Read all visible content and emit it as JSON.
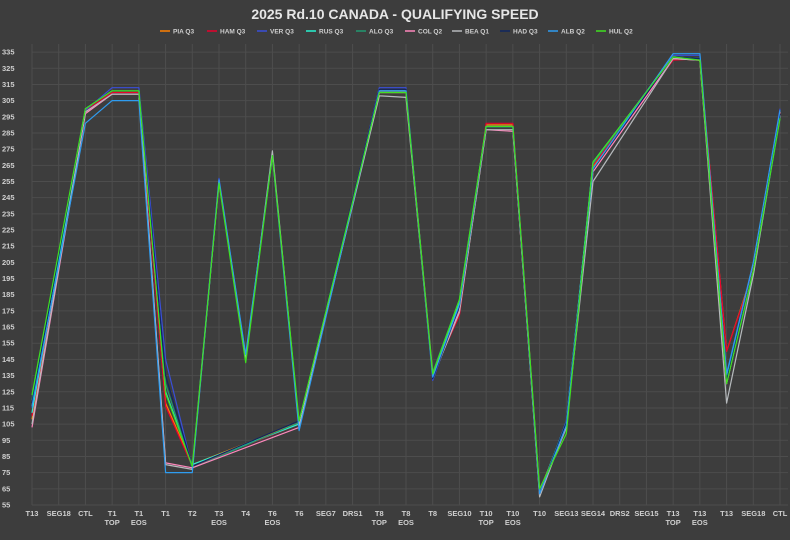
{
  "chart_data": {
    "type": "line",
    "title": "2025 Rd.10 CANADA - QUALIFYING SPEED",
    "xlabel": "",
    "ylabel": "",
    "ylim": [
      55,
      340
    ],
    "yticks": [
      55,
      65,
      75,
      85,
      95,
      105,
      115,
      125,
      135,
      145,
      155,
      165,
      175,
      185,
      195,
      205,
      215,
      225,
      235,
      245,
      255,
      265,
      275,
      285,
      295,
      305,
      315,
      325,
      335
    ],
    "grid": true,
    "legend_position": "top-center",
    "categories": [
      [
        "T13"
      ],
      [
        "SEG18"
      ],
      [
        "CTL"
      ],
      [
        "T1",
        "TOP"
      ],
      [
        "T1",
        "EOS"
      ],
      [
        "T1"
      ],
      [
        "T2"
      ],
      [
        "T3",
        "EOS"
      ],
      [
        "T4"
      ],
      [
        "T6",
        "EOS"
      ],
      [
        "T6"
      ],
      [
        "SEG7"
      ],
      [
        "DRS1"
      ],
      [
        "T8",
        "TOP"
      ],
      [
        "T8",
        "EOS"
      ],
      [
        "T8"
      ],
      [
        "SEG10"
      ],
      [
        "T10",
        "TOP"
      ],
      [
        "T10",
        "EOS"
      ],
      [
        "T10"
      ],
      [
        "SEG13"
      ],
      [
        "SEG14"
      ],
      [
        "DRS2"
      ],
      [
        "SEG15"
      ],
      [
        "T13",
        "TOP"
      ],
      [
        "T13",
        "EOS"
      ],
      [
        "T13"
      ],
      [
        "SEG18"
      ],
      [
        "CTL"
      ]
    ],
    "series": [
      {
        "name": "PIA Q3",
        "color": "#ff8000",
        "values": [
          108,
          null,
          300,
          311,
          311,
          118,
          80,
          null,
          null,
          null,
          106,
          null,
          null,
          310,
          310,
          137,
          178,
          290,
          290,
          64,
          104,
          264,
          null,
          null,
          331,
          330,
          150,
          200,
          298
        ]
      },
      {
        "name": "HAM  Q3",
        "color": "#e8002d",
        "values": [
          110,
          null,
          299,
          310,
          310,
          116,
          79,
          null,
          null,
          null,
          105,
          null,
          null,
          311,
          311,
          136,
          172,
          291,
          291,
          63,
          105,
          265,
          null,
          null,
          330,
          331,
          150,
          199,
          297
        ]
      },
      {
        "name": "VER Q3",
        "color": "#3a4fd9",
        "values": [
          115,
          null,
          299,
          313,
          313,
          145,
          78,
          257,
          147,
          272,
          104,
          null,
          null,
          313,
          313,
          132,
          178,
          289,
          289,
          61,
          107,
          266,
          null,
          null,
          333,
          333,
          135,
          203,
          300
        ]
      },
      {
        "name": "RUS Q3",
        "color": "#27f4d2",
        "values": [
          112,
          null,
          300,
          311,
          311,
          125,
          80,
          null,
          null,
          null,
          105,
          null,
          null,
          311,
          311,
          135,
          180,
          289,
          289,
          63,
          106,
          267,
          null,
          null,
          332,
          331,
          133,
          200,
          296
        ]
      },
      {
        "name": "ALO Q3",
        "color": "#229971",
        "values": [
          120,
          null,
          300,
          311,
          311,
          130,
          78,
          null,
          null,
          null,
          106,
          null,
          null,
          310,
          310,
          137,
          182,
          289,
          289,
          64,
          102,
          266,
          null,
          null,
          332,
          331,
          131,
          198,
          294
        ]
      },
      {
        "name": "COL Q2",
        "color": "#ff87bc",
        "values": [
          103,
          null,
          297,
          309,
          309,
          81,
          78,
          null,
          null,
          null,
          103,
          null,
          null,
          310,
          310,
          135,
          175,
          287,
          286,
          62,
          103,
          261,
          null,
          null,
          331,
          330,
          130,
          202,
          298
        ]
      },
      {
        "name": "BEA Q1",
        "color": "#b6babd",
        "values": [
          105,
          null,
          298,
          309,
          309,
          80,
          77,
          255,
          145,
          274,
          104,
          null,
          null,
          308,
          307,
          134,
          174,
          287,
          287,
          60,
          104,
          255,
          null,
          null,
          331,
          330,
          118,
          197,
          296
        ]
      },
      {
        "name": "HAD Q3",
        "color": "#102660",
        "values": [
          118,
          null,
          300,
          311,
          311,
          135,
          79,
          null,
          null,
          null,
          107,
          null,
          null,
          312,
          312,
          133,
          178,
          289,
          289,
          62,
          106,
          263,
          null,
          null,
          332,
          331,
          132,
          201,
          297
        ]
      },
      {
        "name": "ALB Q2",
        "color": "#2f9cf0",
        "values": [
          116,
          null,
          291,
          305,
          305,
          75,
          75,
          256,
          148,
          271,
          101,
          null,
          null,
          311,
          311,
          134,
          179,
          289,
          289,
          62,
          104,
          263,
          null,
          null,
          334,
          334,
          136,
          205,
          299
        ]
      },
      {
        "name": "HUL Q2",
        "color": "#40e020",
        "values": [
          123,
          null,
          300,
          311,
          311,
          124,
          79,
          254,
          143,
          271,
          107,
          null,
          null,
          310,
          310,
          136,
          182,
          289,
          289,
          65,
          99,
          267,
          null,
          null,
          332,
          330,
          130,
          200,
          294
        ]
      }
    ]
  }
}
